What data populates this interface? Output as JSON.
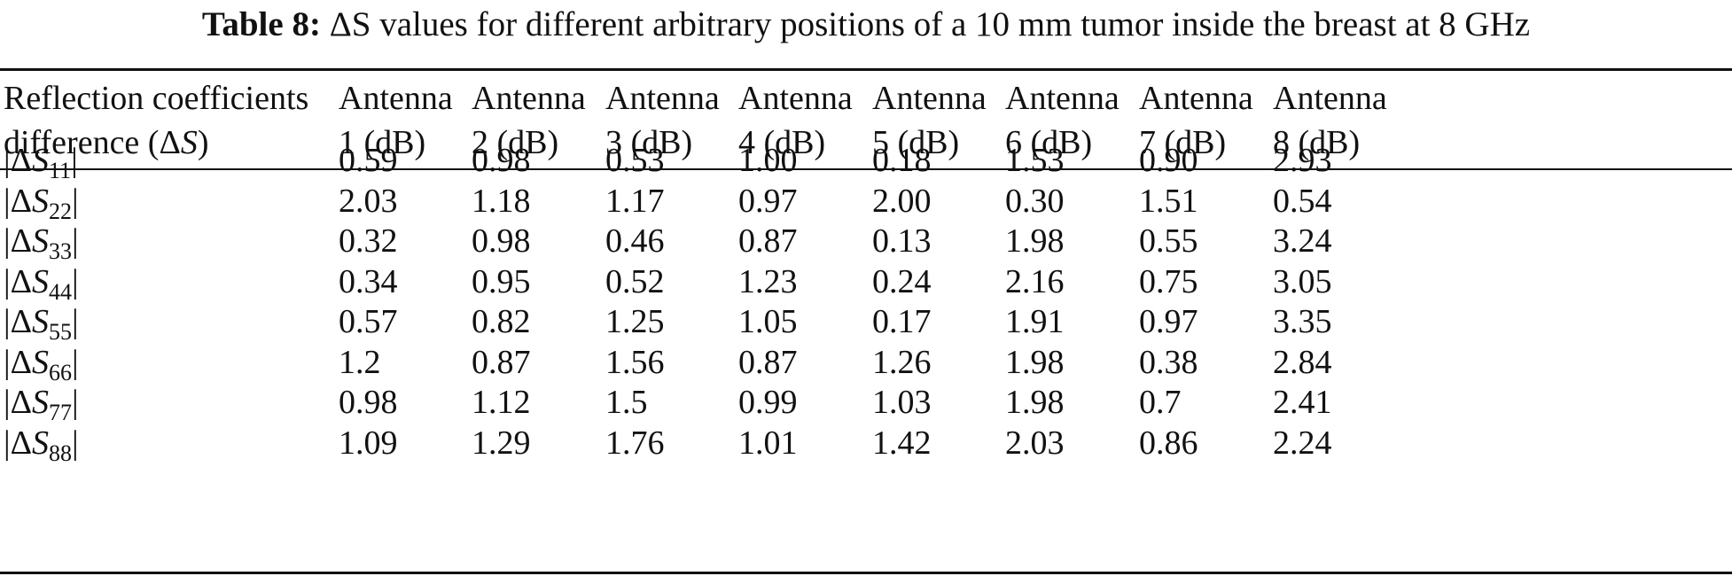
{
  "caption": {
    "label": "Table 8:",
    "text": "ΔS values for different arbitrary positions of a 10 mm tumor inside the breast at 8 GHz"
  },
  "table": {
    "row_header": {
      "line1": "Reflection coefficients",
      "line2_prefix": "difference (Δ",
      "line2_var": "S",
      "line2_suffix": ")"
    },
    "columns": [
      {
        "line1": "Antenna",
        "line2": "1 (dB)"
      },
      {
        "line1": "Antenna",
        "line2": "2 (dB)"
      },
      {
        "line1": "Antenna",
        "line2": "3 (dB)"
      },
      {
        "line1": "Antenna",
        "line2": "4 (dB)"
      },
      {
        "line1": "Antenna",
        "line2": "5 (dB)"
      },
      {
        "line1": "Antenna",
        "line2": "6 (dB)"
      },
      {
        "line1": "Antenna",
        "line2": "7 (dB)"
      },
      {
        "line1": "Antenna",
        "line2": "8 (dB)"
      }
    ],
    "rows": [
      {
        "sub": "11",
        "values": [
          "0.59",
          "0.98",
          "0.53",
          "1.00",
          "0.18",
          "1.53",
          "0.90",
          "2.93"
        ]
      },
      {
        "sub": "22",
        "values": [
          "2.03",
          "1.18",
          "1.17",
          "0.97",
          "2.00",
          "0.30",
          "1.51",
          "0.54"
        ]
      },
      {
        "sub": "33",
        "values": [
          "0.32",
          "0.98",
          "0.46",
          "0.87",
          "0.13",
          "1.98",
          "0.55",
          "3.24"
        ]
      },
      {
        "sub": "44",
        "values": [
          "0.34",
          "0.95",
          "0.52",
          "1.23",
          "0.24",
          "2.16",
          "0.75",
          "3.05"
        ]
      },
      {
        "sub": "55",
        "values": [
          "0.57",
          "0.82",
          "1.25",
          "1.05",
          "0.17",
          "1.91",
          "0.97",
          "3.35"
        ]
      },
      {
        "sub": "66",
        "values": [
          "1.2",
          "0.87",
          "1.56",
          "0.87",
          "1.26",
          "1.98",
          "0.38",
          "2.84"
        ]
      },
      {
        "sub": "77",
        "values": [
          "0.98",
          "1.12",
          "1.5",
          "0.99",
          "1.03",
          "1.98",
          "0.7",
          "2.41"
        ]
      },
      {
        "sub": "88",
        "values": [
          "1.09",
          "1.29",
          "1.76",
          "1.01",
          "1.42",
          "2.03",
          "0.86",
          "2.24"
        ]
      }
    ],
    "row_label_parts": {
      "bar": "|",
      "delta": "Δ",
      "var": "S"
    }
  }
}
